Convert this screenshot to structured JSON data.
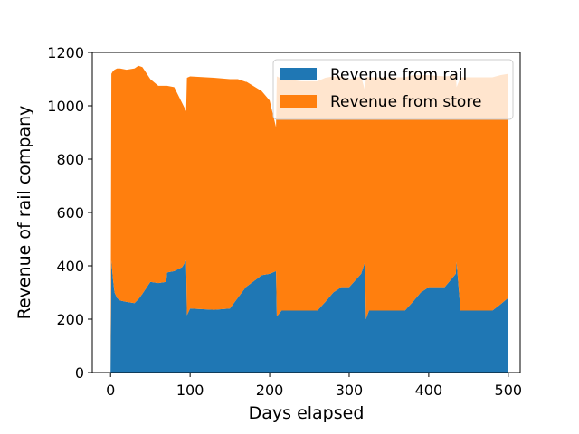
{
  "chart_data": {
    "type": "area",
    "stacked": true,
    "xlabel": "Days elapsed",
    "ylabel": "Revenue of rail company",
    "xlim": [
      -23,
      515
    ],
    "ylim": [
      0,
      1200
    ],
    "xticks": [
      0,
      100,
      200,
      300,
      400,
      500
    ],
    "xtick_labels": [
      "0",
      "100",
      "200",
      "300",
      "400",
      "500"
    ],
    "yticks": [
      0,
      200,
      400,
      600,
      800,
      1000,
      1200
    ],
    "ytick_labels": [
      "0",
      "200",
      "400",
      "600",
      "800",
      "1000",
      "1200"
    ],
    "grid": false,
    "legend_position": "upper right",
    "series": [
      {
        "name": "Revenue from rail",
        "color": "#1f77b4",
        "x": [
          0,
          1,
          3,
          5,
          8,
          12,
          20,
          30,
          35,
          40,
          50,
          60,
          70,
          71,
          80,
          90,
          95,
          96,
          100,
          130,
          150,
          160,
          170,
          171,
          190,
          200,
          208,
          209,
          215,
          240,
          260,
          270,
          280,
          290,
          300,
          315,
          320,
          321,
          325,
          350,
          370,
          380,
          390,
          400,
          420,
          434,
          435,
          440,
          460,
          480,
          490,
          500
        ],
        "values": [
          0,
          420,
          350,
          300,
          280,
          270,
          265,
          260,
          275,
          295,
          340,
          335,
          340,
          375,
          380,
          395,
          420,
          215,
          240,
          235,
          240,
          280,
          320,
          322,
          365,
          370,
          380,
          210,
          232,
          232,
          232,
          265,
          300,
          320,
          320,
          370,
          415,
          200,
          232,
          232,
          232,
          265,
          300,
          320,
          320,
          370,
          415,
          232,
          232,
          232,
          255,
          280
        ]
      },
      {
        "name": "Revenue from store",
        "color": "#ff7f0e",
        "x": [
          0,
          1,
          3,
          5,
          8,
          12,
          20,
          30,
          35,
          40,
          50,
          60,
          70,
          71,
          80,
          90,
          95,
          96,
          100,
          130,
          150,
          160,
          170,
          171,
          190,
          200,
          208,
          209,
          215,
          240,
          260,
          270,
          280,
          290,
          300,
          315,
          320,
          321,
          325,
          350,
          370,
          380,
          390,
          400,
          420,
          434,
          435,
          440,
          460,
          480,
          490,
          500
        ],
        "values": [
          0,
          700,
          780,
          835,
          860,
          870,
          870,
          880,
          875,
          850,
          760,
          740,
          735,
          700,
          690,
          615,
          560,
          890,
          870,
          870,
          860,
          820,
          770,
          768,
          690,
          650,
          540,
          900,
          870,
          860,
          860,
          840,
          810,
          790,
          780,
          740,
          640,
          910,
          875,
          875,
          875,
          850,
          815,
          795,
          790,
          745,
          655,
          875,
          875,
          875,
          860,
          840
        ]
      }
    ]
  }
}
